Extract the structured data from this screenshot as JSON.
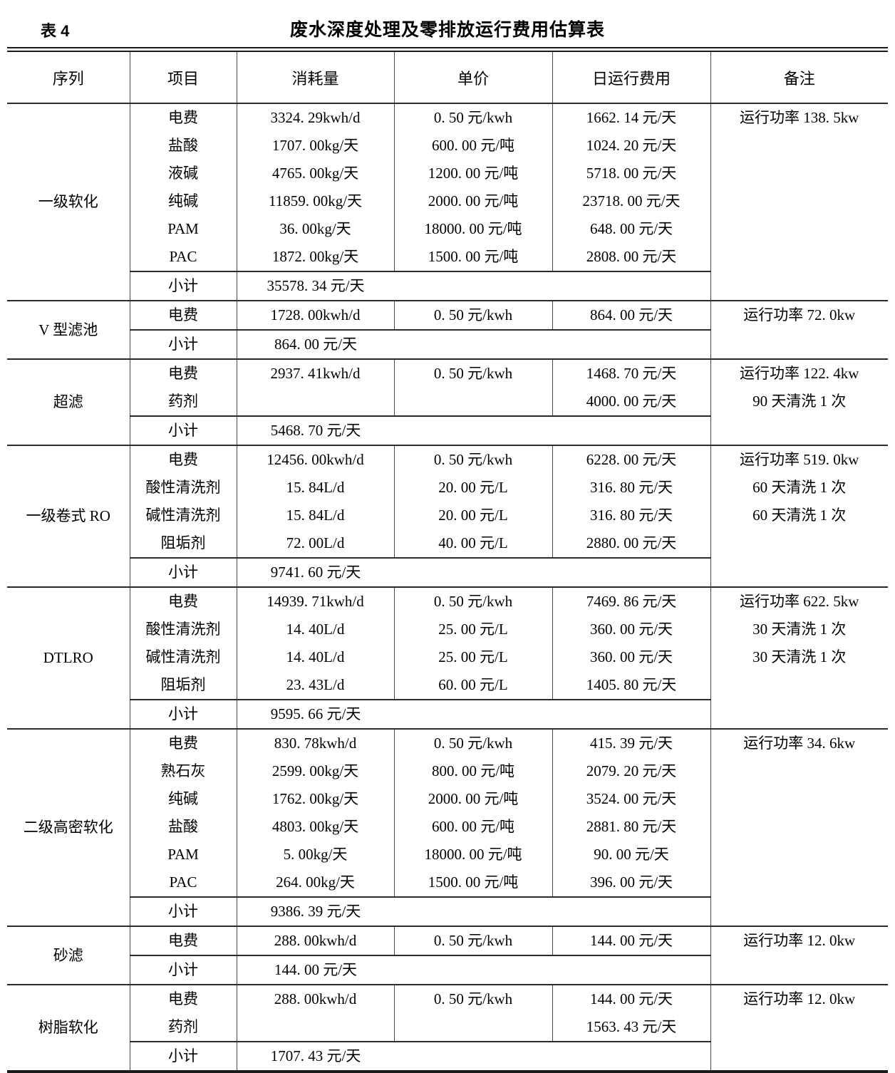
{
  "caption": {
    "label": "表 4",
    "title": "废水深度处理及零排放运行费用估算表"
  },
  "columns": [
    "序列",
    "项目",
    "消耗量",
    "单价",
    "日运行费用",
    "备注"
  ],
  "subtotal_label": "小计",
  "groups": [
    {
      "name": "一级软化",
      "rows": [
        {
          "item": "电费",
          "consumption": "3324. 29kwh/d",
          "unit_price": "0. 50 元/kwh",
          "daily_cost": "1662. 14 元/天",
          "remark": "运行功率 138. 5kw"
        },
        {
          "item": "盐酸",
          "consumption": "1707. 00kg/天",
          "unit_price": "600. 00 元/吨",
          "daily_cost": "1024. 20 元/天",
          "remark": ""
        },
        {
          "item": "液碱",
          "consumption": "4765. 00kg/天",
          "unit_price": "1200. 00 元/吨",
          "daily_cost": "5718. 00 元/天",
          "remark": ""
        },
        {
          "item": "纯碱",
          "consumption": "11859. 00kg/天",
          "unit_price": "2000. 00 元/吨",
          "daily_cost": "23718. 00 元/天",
          "remark": ""
        },
        {
          "item": "PAM",
          "consumption": "36. 00kg/天",
          "unit_price": "18000. 00 元/吨",
          "daily_cost": "648. 00 元/天",
          "remark": ""
        },
        {
          "item": "PAC",
          "consumption": "1872. 00kg/天",
          "unit_price": "1500. 00 元/吨",
          "daily_cost": "2808. 00 元/天",
          "remark": ""
        }
      ],
      "subtotal": "35578. 34 元/天"
    },
    {
      "name": "V 型滤池",
      "rows": [
        {
          "item": "电费",
          "consumption": "1728. 00kwh/d",
          "unit_price": "0. 50 元/kwh",
          "daily_cost": "864. 00 元/天",
          "remark": "运行功率 72. 0kw"
        }
      ],
      "subtotal": "864. 00 元/天"
    },
    {
      "name": "超滤",
      "rows": [
        {
          "item": "电费",
          "consumption": "2937. 41kwh/d",
          "unit_price": "0. 50 元/kwh",
          "daily_cost": "1468. 70 元/天",
          "remark": "运行功率 122. 4kw"
        },
        {
          "item": "药剂",
          "consumption": "",
          "unit_price": "",
          "daily_cost": "4000. 00 元/天",
          "remark": "90 天清洗 1 次"
        }
      ],
      "subtotal": "5468. 70 元/天"
    },
    {
      "name": "一级卷式 RO",
      "rows": [
        {
          "item": "电费",
          "consumption": "12456. 00kwh/d",
          "unit_price": "0. 50 元/kwh",
          "daily_cost": "6228. 00 元/天",
          "remark": "运行功率 519. 0kw"
        },
        {
          "item": "酸性清洗剂",
          "consumption": "15. 84L/d",
          "unit_price": "20. 00 元/L",
          "daily_cost": "316. 80 元/天",
          "remark": "60 天清洗 1 次"
        },
        {
          "item": "碱性清洗剂",
          "consumption": "15. 84L/d",
          "unit_price": "20. 00 元/L",
          "daily_cost": "316. 80 元/天",
          "remark": "60 天清洗 1 次"
        },
        {
          "item": "阻垢剂",
          "consumption": "72. 00L/d",
          "unit_price": "40. 00 元/L",
          "daily_cost": "2880. 00 元/天",
          "remark": ""
        }
      ],
      "subtotal": "9741. 60 元/天"
    },
    {
      "name": "DTLRO",
      "rows": [
        {
          "item": "电费",
          "consumption": "14939. 71kwh/d",
          "unit_price": "0. 50 元/kwh",
          "daily_cost": "7469. 86 元/天",
          "remark": "运行功率 622. 5kw"
        },
        {
          "item": "酸性清洗剂",
          "consumption": "14. 40L/d",
          "unit_price": "25. 00 元/L",
          "daily_cost": "360. 00 元/天",
          "remark": "30 天清洗 1 次"
        },
        {
          "item": "碱性清洗剂",
          "consumption": "14. 40L/d",
          "unit_price": "25. 00 元/L",
          "daily_cost": "360. 00 元/天",
          "remark": "30 天清洗 1 次"
        },
        {
          "item": "阻垢剂",
          "consumption": "23. 43L/d",
          "unit_price": "60. 00 元/L",
          "daily_cost": "1405. 80 元/天",
          "remark": ""
        }
      ],
      "subtotal": "9595. 66 元/天"
    },
    {
      "name": "二级高密软化",
      "rows": [
        {
          "item": "电费",
          "consumption": "830. 78kwh/d",
          "unit_price": "0. 50 元/kwh",
          "daily_cost": "415. 39 元/天",
          "remark": "运行功率 34. 6kw"
        },
        {
          "item": "熟石灰",
          "consumption": "2599. 00kg/天",
          "unit_price": "800. 00 元/吨",
          "daily_cost": "2079. 20 元/天",
          "remark": ""
        },
        {
          "item": "纯碱",
          "consumption": "1762. 00kg/天",
          "unit_price": "2000. 00 元/吨",
          "daily_cost": "3524. 00 元/天",
          "remark": ""
        },
        {
          "item": "盐酸",
          "consumption": "4803. 00kg/天",
          "unit_price": "600. 00 元/吨",
          "daily_cost": "2881. 80 元/天",
          "remark": ""
        },
        {
          "item": "PAM",
          "consumption": "5. 00kg/天",
          "unit_price": "18000. 00 元/吨",
          "daily_cost": "90. 00 元/天",
          "remark": ""
        },
        {
          "item": "PAC",
          "consumption": "264. 00kg/天",
          "unit_price": "1500. 00 元/吨",
          "daily_cost": "396. 00 元/天",
          "remark": ""
        }
      ],
      "subtotal": "9386. 39 元/天"
    },
    {
      "name": "砂滤",
      "rows": [
        {
          "item": "电费",
          "consumption": "288. 00kwh/d",
          "unit_price": "0. 50 元/kwh",
          "daily_cost": "144. 00 元/天",
          "remark": "运行功率 12. 0kw"
        }
      ],
      "subtotal": "144. 00 元/天"
    },
    {
      "name": "树脂软化",
      "rows": [
        {
          "item": "电费",
          "consumption": "288. 00kwh/d",
          "unit_price": "0. 50 元/kwh",
          "daily_cost": "144. 00 元/天",
          "remark": "运行功率 12. 0kw"
        },
        {
          "item": "药剂",
          "consumption": "",
          "unit_price": "",
          "daily_cost": "1563. 43 元/天",
          "remark": ""
        }
      ],
      "subtotal": "1707. 43 元/天"
    }
  ],
  "line_colors": {
    "rule": "#1b1b1b",
    "grid": "#4a4a4a"
  }
}
